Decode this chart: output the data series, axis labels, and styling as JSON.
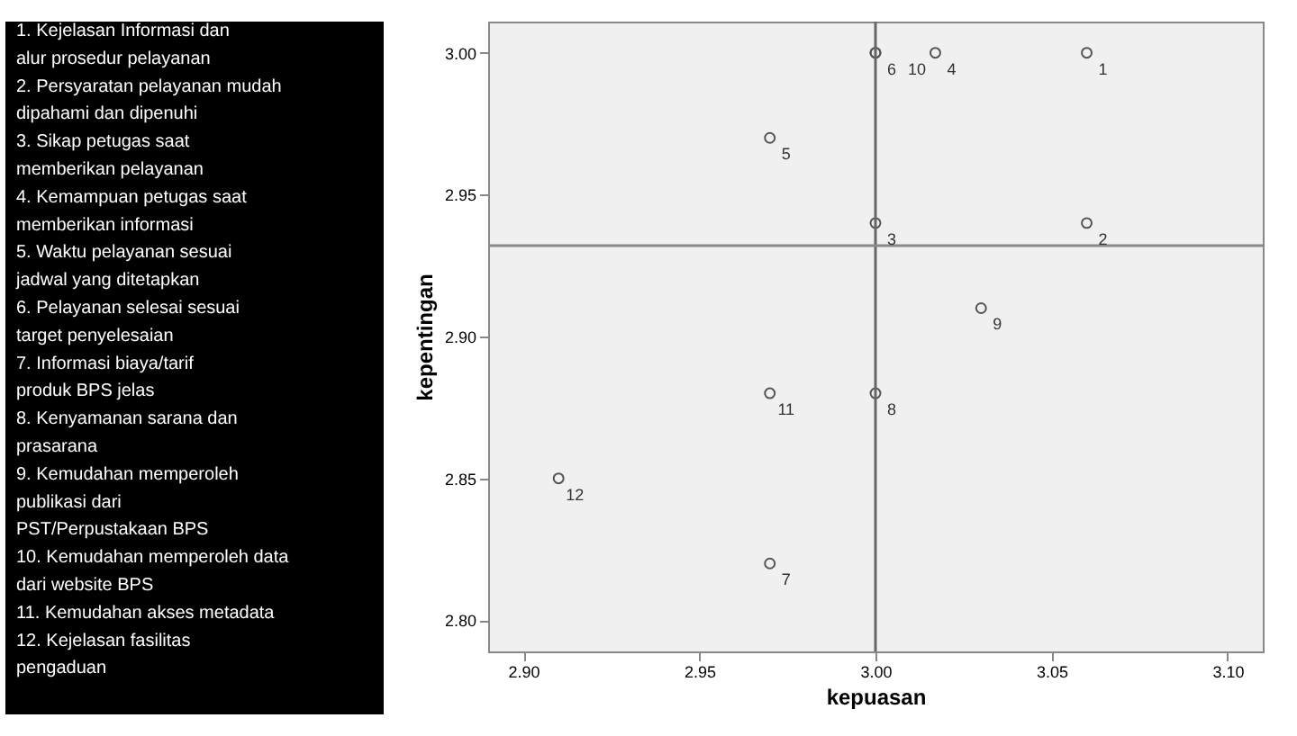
{
  "chart_data": {
    "type": "scatter",
    "xlabel": "kepuasan",
    "ylabel": "kepentingan",
    "x": [
      3.06,
      3.06,
      3.0,
      3.017,
      2.97,
      3.0,
      2.97,
      3.0,
      3.03,
      3.0,
      2.97,
      2.91
    ],
    "series": [
      {
        "color": "#555555",
        "values": [
          3.0,
          2.94,
          2.94,
          3.0,
          2.97,
          3.0,
          2.82,
          2.88,
          2.91,
          3.0,
          2.88,
          2.85
        ]
      }
    ],
    "marker": "circle",
    "grid": false,
    "legend": false,
    "xlim": [
      2.89,
      3.11
    ],
    "xticks": [
      {
        "value": 2.9,
        "label": "2.90"
      },
      {
        "value": 2.95,
        "label": "2.95"
      },
      {
        "value": 3.0,
        "label": "3.00"
      },
      {
        "value": 3.05,
        "label": "3.05"
      },
      {
        "value": 3.1,
        "label": "3.10"
      }
    ],
    "ylim": [
      2.789,
      3.011
    ],
    "yticks": [
      {
        "value": 2.8,
        "label": "2.80"
      },
      {
        "value": 2.85,
        "label": "2.85"
      },
      {
        "value": 2.9,
        "label": "2.90"
      },
      {
        "value": 2.95,
        "label": "2.95"
      },
      {
        "value": 3.0,
        "label": "3.00"
      }
    ],
    "ref_lines": [
      {
        "axis": "x",
        "value": 3.0,
        "color": "#666666"
      },
      {
        "axis": "y",
        "value": 2.932,
        "color": "#888888"
      }
    ],
    "annotations": [
      "1. Kejelasan Informasi dan alur prosedur pelayanan",
      "2. Persyaratan pelayanan mudah dipahami dan dipenuhi",
      "3. Sikap petugas saat memberikan pelayanan",
      "4. Kemampuan petugas saat memberikan informasi",
      "5. Waktu pelayanan sesuai jadwal yang ditetapkan",
      "6. Pelayanan selesai sesuai target penyelesaian",
      "7. Informasi biaya/tarif produk BPS jelas",
      "8. Kenyamanan sarana dan prasarana",
      "9. Kemudahan memperoleh publikasi dari PST/Perpustakaan BPS",
      "10. Kemudahan memperoleh data dari website BPS",
      "11. Kemudahan akses metadata",
      "12. Kejelasan fasilitas pengaduan",
      {
        "text": "1",
        "x": 3.06,
        "y": 3.0
      },
      {
        "text": "2",
        "x": 3.06,
        "y": 2.94
      },
      {
        "text": "3",
        "x": 3.0,
        "y": 2.94
      },
      {
        "text": "4",
        "x": 3.017,
        "y": 3.0
      },
      {
        "text": "5",
        "x": 2.97,
        "y": 2.97
      },
      {
        "text": "6",
        "x": 3.0,
        "y": 3.0
      },
      {
        "text": "7",
        "x": 2.97,
        "y": 2.82
      },
      {
        "text": "8",
        "x": 3.0,
        "y": 2.88
      },
      {
        "text": "9",
        "x": 3.03,
        "y": 2.91
      },
      {
        "text": "10",
        "x": 3.0,
        "y": 3.0
      },
      {
        "text": "11",
        "x": 2.97,
        "y": 2.88
      },
      {
        "text": "12",
        "x": 2.91,
        "y": 2.85
      }
    ]
  }
}
